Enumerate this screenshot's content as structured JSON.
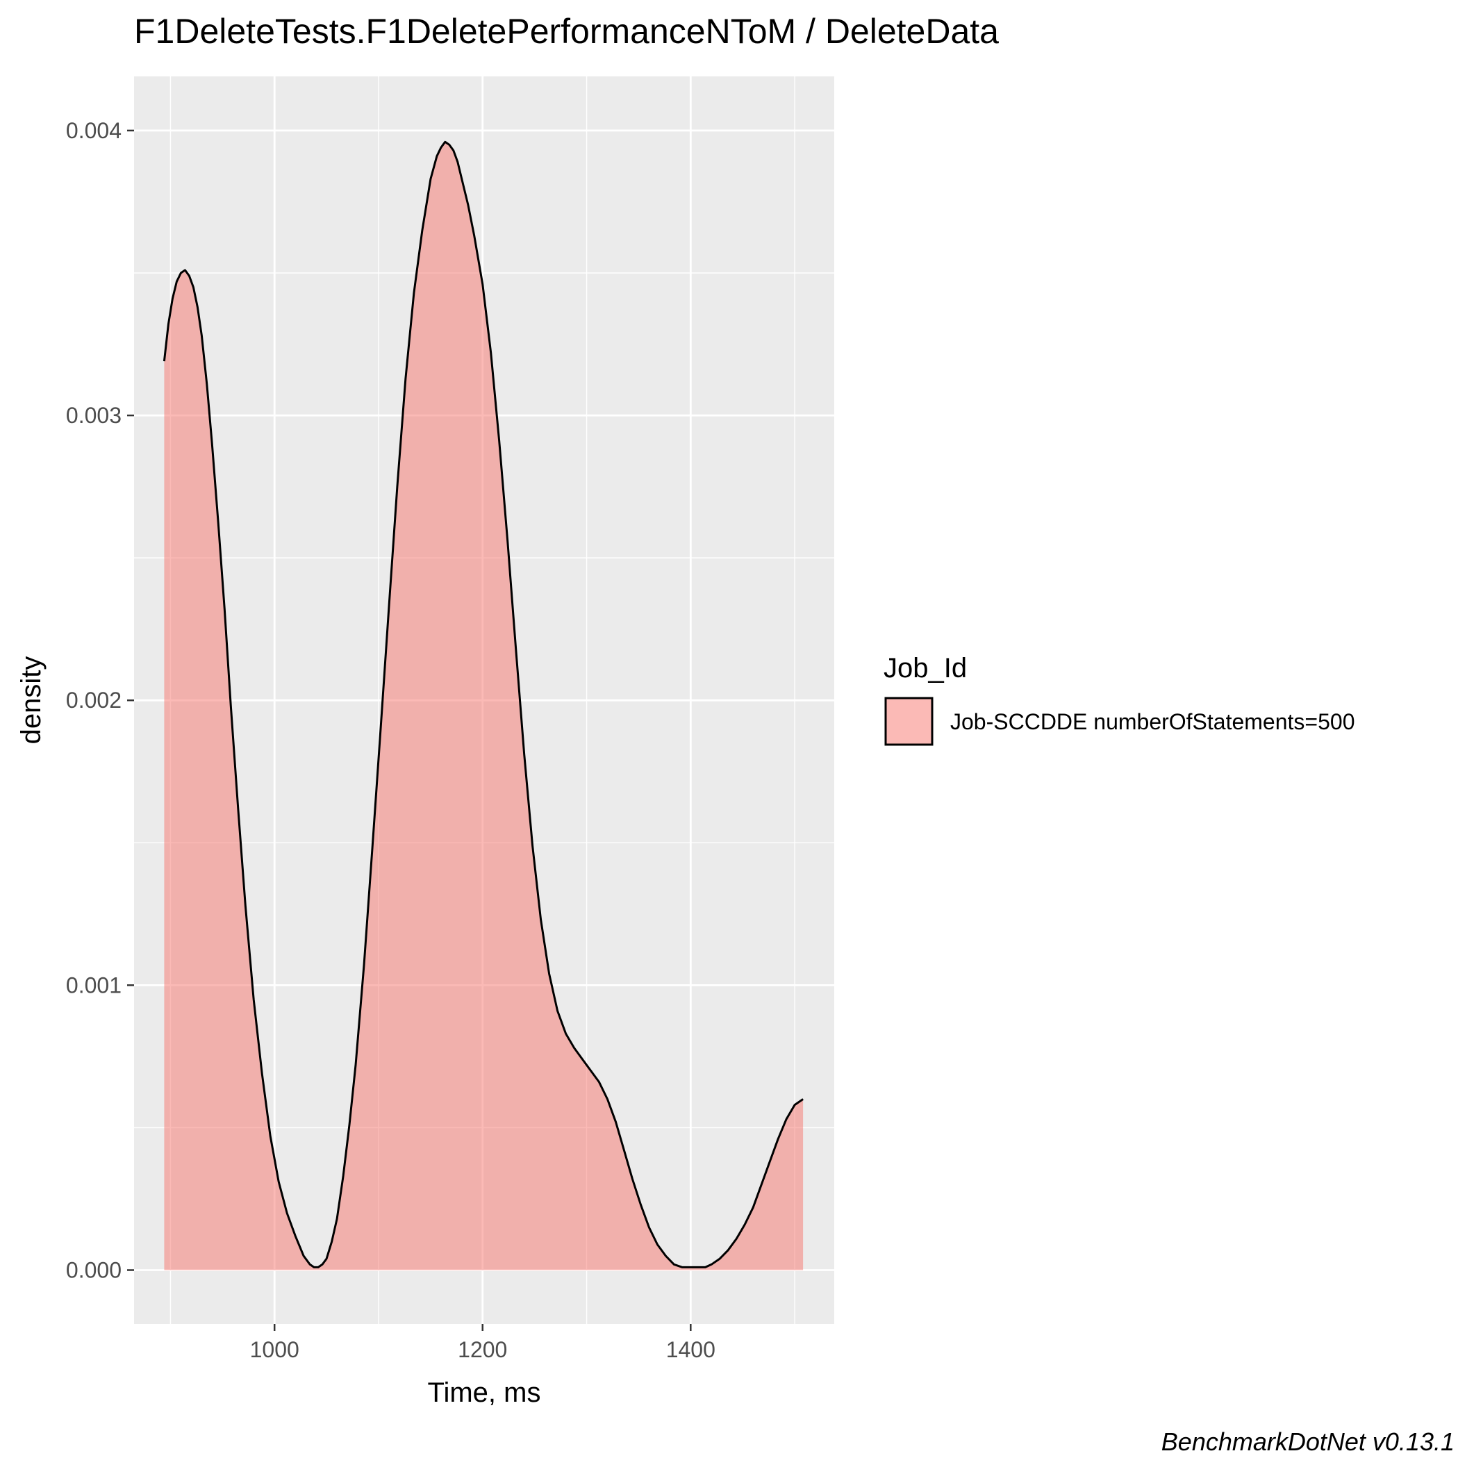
{
  "chart_data": {
    "type": "area",
    "title": "F1DeleteTests.F1DeletePerformanceNToM / DeleteData",
    "xlabel": "Time, ms",
    "ylabel": "density",
    "xlim": [
      865,
      1538
    ],
    "ylim": [
      -0.000189,
      0.00419
    ],
    "x_ticks": [
      1000,
      1200,
      1400
    ],
    "x_tick_labels": [
      "1000",
      "1200",
      "1400"
    ],
    "y_ticks": [
      0,
      0.001,
      0.002,
      0.003,
      0.004
    ],
    "y_tick_labels": [
      "0.000",
      "0.001",
      "0.002",
      "0.003",
      "0.004"
    ],
    "x_minor": [
      900,
      1100,
      1300,
      1500
    ],
    "y_minor": [
      0.0005,
      0.0015,
      0.0025,
      0.0035
    ],
    "grid": true,
    "legend": {
      "title": "Job_Id",
      "position": "right",
      "entries": [
        "Job-SCCDDE numberOfStatements=500"
      ]
    },
    "colors": {
      "fill": "#F8766D",
      "panel": "#EBEBEB",
      "grid": "#FFFFFF",
      "line": "#000000"
    },
    "series": [
      {
        "x": [
          894,
          898,
          902,
          906,
          910,
          914,
          918,
          922,
          926,
          930,
          935,
          940,
          946,
          952,
          958,
          965,
          972,
          980,
          988,
          996,
          1004,
          1012,
          1020,
          1028,
          1034,
          1038,
          1042,
          1046,
          1050,
          1055,
          1060,
          1066,
          1072,
          1078,
          1086,
          1094,
          1102,
          1110,
          1118,
          1126,
          1134,
          1142,
          1150,
          1156,
          1160,
          1164,
          1168,
          1172,
          1176,
          1180,
          1186,
          1192,
          1200,
          1208,
          1216,
          1224,
          1232,
          1240,
          1248,
          1256,
          1264,
          1272,
          1280,
          1288,
          1296,
          1304,
          1312,
          1320,
          1328,
          1336,
          1344,
          1352,
          1360,
          1368,
          1376,
          1384,
          1392,
          1400,
          1408,
          1414,
          1420,
          1428,
          1436,
          1444,
          1452,
          1460,
          1468,
          1476,
          1484,
          1492,
          1500,
          1508
        ],
        "y": [
          0.00319,
          0.00332,
          0.00341,
          0.00347,
          0.0035,
          0.00351,
          0.00349,
          0.00345,
          0.00338,
          0.00328,
          0.00311,
          0.0029,
          0.00262,
          0.00232,
          0.00198,
          0.00162,
          0.00128,
          0.00095,
          0.00069,
          0.00047,
          0.00031,
          0.0002,
          0.00012,
          5e-05,
          2e-05,
          1e-05,
          1e-05,
          2e-05,
          4e-05,
          0.0001,
          0.00018,
          0.00033,
          0.00051,
          0.00072,
          0.00107,
          0.00148,
          0.0019,
          0.00233,
          0.00275,
          0.00313,
          0.00343,
          0.00365,
          0.00383,
          0.00391,
          0.00394,
          0.00396,
          0.00395,
          0.00393,
          0.00389,
          0.00383,
          0.00374,
          0.00363,
          0.00346,
          0.00322,
          0.00291,
          0.00256,
          0.00218,
          0.00181,
          0.00149,
          0.00123,
          0.00104,
          0.00091,
          0.00083,
          0.00078,
          0.00074,
          0.0007,
          0.00066,
          0.0006,
          0.00052,
          0.00042,
          0.00032,
          0.00023,
          0.00015,
          9e-05,
          5e-05,
          2e-05,
          1e-05,
          1e-05,
          1e-05,
          1e-05,
          2e-05,
          4e-05,
          7e-05,
          0.00011,
          0.00016,
          0.00022,
          0.0003,
          0.00038,
          0.00046,
          0.00053,
          0.00058,
          0.0006
        ]
      }
    ]
  },
  "caption": "BenchmarkDotNet v0.13.1"
}
